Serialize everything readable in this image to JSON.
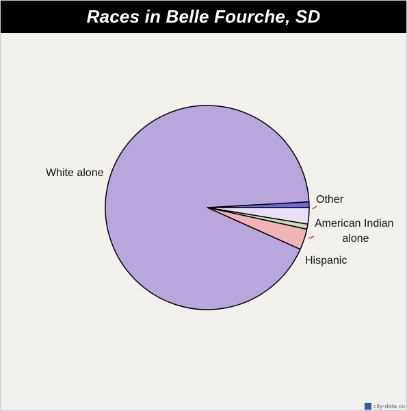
{
  "title": "Races in Belle Fourche, SD",
  "watermark": "city-data.co",
  "colors": {
    "title_bg": "#000000",
    "title_fg": "#ffffff",
    "background": "#f3f1ee",
    "slice_stroke": "#000000"
  },
  "chart_data": {
    "type": "pie",
    "title": "Races in Belle Fourche, SD",
    "slices": [
      {
        "label": "White alone",
        "value": 92.4,
        "color": "#b8a6dd"
      },
      {
        "label": "Hispanic",
        "value": 3.3,
        "color": "#f2b3b6"
      },
      {
        "label": "",
        "value": 0.8,
        "color": "#c9dfb0"
      },
      {
        "label": "American Indian alone",
        "value": 2.6,
        "color": "#e6dff5"
      },
      {
        "label": "Other",
        "value": 0.9,
        "color": "#6b6ae6"
      }
    ]
  }
}
